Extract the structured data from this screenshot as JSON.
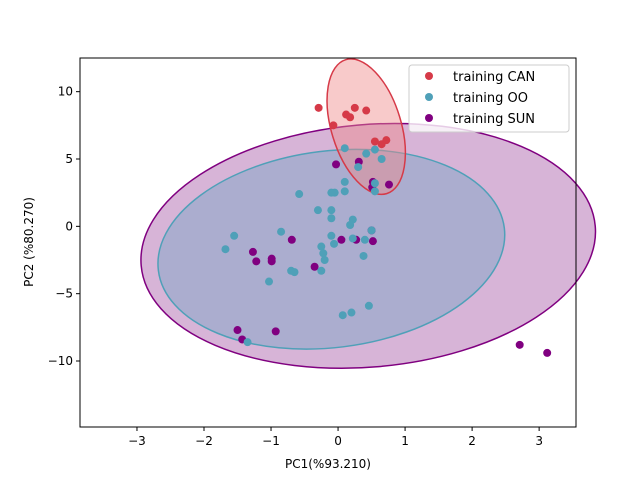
{
  "chart_data": {
    "type": "scatter",
    "title": "",
    "xlabel": "PC1(%93.210)",
    "ylabel": "PC2 (%80.270)",
    "xlim": [
      -3.85,
      3.55
    ],
    "ylim": [
      -14.9,
      12.5
    ],
    "xticks": [
      -3,
      -2,
      -1,
      0,
      1,
      2,
      3
    ],
    "xtick_labels": [
      "−3",
      "−2",
      "−1",
      "0",
      "1",
      "2",
      "3"
    ],
    "yticks": [
      -10,
      -5,
      0,
      5,
      10
    ],
    "ytick_labels": [
      "−10",
      "−5",
      "0",
      "5",
      "10"
    ],
    "grid": false,
    "legend_position": "top-right",
    "series": [
      {
        "name": "training SUN",
        "color": "#800080",
        "ellipse": {
          "cx": 0.45,
          "cy": -1.45,
          "rx": 3.4,
          "ry": 9.0,
          "angle_deg": -5,
          "fill": "#b06ab0",
          "fill_opacity": 0.5
        },
        "points": [
          [
            -0.03,
            4.6
          ],
          [
            0.31,
            4.8
          ],
          [
            0.51,
            2.9
          ],
          [
            0.76,
            3.1
          ],
          [
            0.52,
            3.3
          ],
          [
            -0.69,
            -1.0
          ],
          [
            0.05,
            -1.0
          ],
          [
            0.27,
            -1.0
          ],
          [
            0.52,
            -1.1
          ],
          [
            0.5,
            -0.3
          ],
          [
            -1.27,
            -1.9
          ],
          [
            -1.22,
            -2.6
          ],
          [
            -0.99,
            -2.6
          ],
          [
            -0.99,
            -2.4
          ],
          [
            -0.35,
            -3.0
          ],
          [
            -1.5,
            -7.7
          ],
          [
            -1.43,
            -8.4
          ],
          [
            -0.93,
            -7.8
          ],
          [
            2.71,
            -8.8
          ],
          [
            3.12,
            -9.4
          ]
        ]
      },
      {
        "name": "training OO",
        "color": "#4fa0b8",
        "ellipse": {
          "cx": -0.1,
          "cy": -1.7,
          "rx": 2.6,
          "ry": 7.3,
          "angle_deg": -7,
          "fill": "#5aa0c0",
          "fill_opacity": 0.35
        },
        "points": [
          [
            0.1,
            5.8
          ],
          [
            0.55,
            5.7
          ],
          [
            0.42,
            5.4
          ],
          [
            0.65,
            5.0
          ],
          [
            0.3,
            4.4
          ],
          [
            0.55,
            3.2
          ],
          [
            0.1,
            3.3
          ],
          [
            0.55,
            2.6
          ],
          [
            0.1,
            2.6
          ],
          [
            -0.05,
            2.5
          ],
          [
            -0.58,
            2.4
          ],
          [
            -0.1,
            2.5
          ],
          [
            -0.3,
            1.2
          ],
          [
            -0.1,
            1.2
          ],
          [
            -0.1,
            0.6
          ],
          [
            0.22,
            0.5
          ],
          [
            0.18,
            0.1
          ],
          [
            0.5,
            -0.3
          ],
          [
            -0.85,
            -0.4
          ],
          [
            -1.55,
            -0.7
          ],
          [
            -1.68,
            -1.7
          ],
          [
            -0.25,
            -1.5
          ],
          [
            -0.1,
            -0.7
          ],
          [
            0.22,
            -0.9
          ],
          [
            0.4,
            -1.0
          ],
          [
            -0.06,
            -1.3
          ],
          [
            -0.22,
            -2.0
          ],
          [
            -0.2,
            -2.5
          ],
          [
            0.38,
            -2.2
          ],
          [
            -0.7,
            -3.3
          ],
          [
            -0.65,
            -3.4
          ],
          [
            -0.25,
            -3.3
          ],
          [
            -1.03,
            -4.1
          ],
          [
            0.46,
            -5.9
          ],
          [
            0.2,
            -6.4
          ],
          [
            0.07,
            -6.6
          ],
          [
            -1.35,
            -8.6
          ]
        ]
      },
      {
        "name": "training CAN",
        "color": "#d63a48",
        "ellipse": {
          "cx": 0.42,
          "cy": 7.4,
          "rx": 0.52,
          "ry": 5.2,
          "angle_deg": -17,
          "fill": "#f08a8a",
          "fill_opacity": 0.45
        },
        "points": [
          [
            -0.29,
            8.8
          ],
          [
            0.25,
            8.8
          ],
          [
            0.42,
            8.6
          ],
          [
            0.12,
            8.3
          ],
          [
            0.18,
            8.1
          ],
          [
            -0.07,
            7.5
          ],
          [
            0.55,
            6.3
          ],
          [
            0.65,
            6.1
          ],
          [
            0.72,
            6.4
          ]
        ]
      }
    ],
    "legend": [
      "training CAN",
      "training OO",
      "training SUN"
    ]
  }
}
